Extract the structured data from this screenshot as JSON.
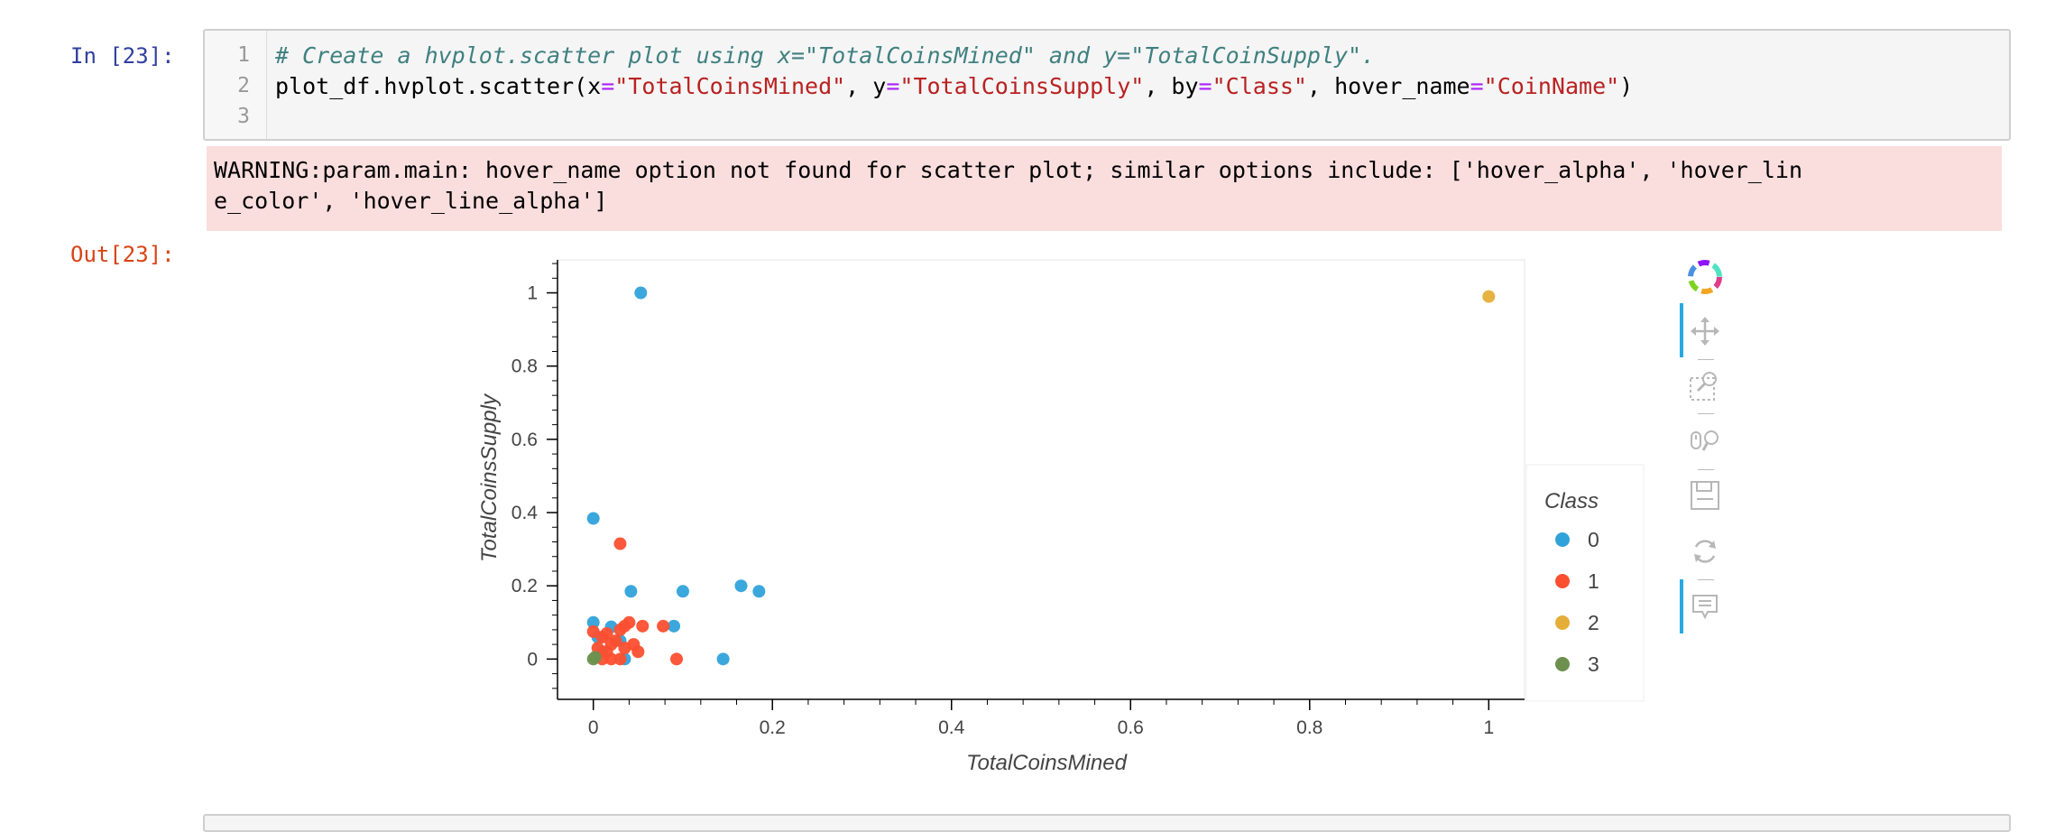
{
  "cell_in": {
    "prompt": "In [23]:",
    "line_numbers": [
      "1",
      "2",
      "3"
    ],
    "line1": "# Create a hvplot.scatter plot using x=\"TotalCoinsMined\" and y=\"TotalCoinSupply\".",
    "line2_parts": [
      "plot_df.hvplot.scatter(x",
      "=",
      "\"TotalCoinsMined\"",
      ", y",
      "=",
      "\"TotalCoinsSupply\"",
      ", by",
      "=",
      "\"Class\"",
      ", hover_name",
      "=",
      "\"CoinName\"",
      ")"
    ]
  },
  "stderr": {
    "line1": "WARNING:param.main: hover_name option not found for scatter plot; similar options include: ['hover_alpha', 'hover_lin",
    "line2": "e_color', 'hover_line_alpha']"
  },
  "cell_out": {
    "prompt": "Out[23]:"
  },
  "chart_data": {
    "type": "scatter",
    "xlabel": "TotalCoinsMined",
    "ylabel": "TotalCoinsSupply",
    "xlim": [
      -0.04,
      1.04
    ],
    "ylim": [
      -0.11,
      1.09
    ],
    "xticks": [
      0,
      0.2,
      0.4,
      0.6,
      0.8,
      1
    ],
    "xtick_labels": [
      "0",
      "0.2",
      "0.4",
      "0.6",
      "0.8",
      "1"
    ],
    "yticks": [
      0,
      0.2,
      0.4,
      0.6,
      0.8,
      1
    ],
    "ytick_labels": [
      "0",
      "0.2",
      "0.4",
      "0.6",
      "0.8",
      "1"
    ],
    "legend_title": "Class",
    "legend_position": "right",
    "series": [
      {
        "name": "0",
        "color": "#30a2da",
        "points": [
          [
            0.053,
            1.0
          ],
          [
            0.0,
            0.384
          ],
          [
            0.165,
            0.2
          ],
          [
            0.185,
            0.185
          ],
          [
            0.1,
            0.185
          ],
          [
            0.042,
            0.185
          ],
          [
            0.0,
            0.1
          ],
          [
            0.02,
            0.088
          ],
          [
            0.09,
            0.09
          ],
          [
            0.145,
            0.0
          ],
          [
            0.035,
            0.0
          ],
          [
            0.01,
            0.02
          ],
          [
            0.03,
            0.05
          ],
          [
            0.005,
            0.06
          ]
        ]
      },
      {
        "name": "1",
        "color": "#fc4f30",
        "points": [
          [
            0.03,
            0.315
          ],
          [
            0.0,
            0.075
          ],
          [
            0.01,
            0.06
          ],
          [
            0.02,
            0.04
          ],
          [
            0.015,
            0.02
          ],
          [
            0.025,
            0.05
          ],
          [
            0.03,
            0.08
          ],
          [
            0.035,
            0.09
          ],
          [
            0.04,
            0.1
          ],
          [
            0.045,
            0.04
          ],
          [
            0.05,
            0.02
          ],
          [
            0.055,
            0.09
          ],
          [
            0.078,
            0.09
          ],
          [
            0.093,
            0.0
          ],
          [
            0.01,
            0.0
          ],
          [
            0.02,
            0.0
          ],
          [
            0.03,
            0.0
          ],
          [
            0.005,
            0.03
          ],
          [
            0.015,
            0.07
          ],
          [
            0.035,
            0.03
          ]
        ]
      },
      {
        "name": "2",
        "color": "#e5ae38",
        "points": [
          [
            1.0,
            0.99
          ]
        ]
      },
      {
        "name": "3",
        "color": "#6d904f",
        "points": [
          [
            0.0,
            0.0
          ],
          [
            0.002,
            0.005
          ]
        ]
      }
    ]
  },
  "toolbar": {
    "tools": [
      "bokeh-logo-icon",
      "pan-icon",
      "box-zoom-icon",
      "wheel-zoom-icon",
      "save-icon",
      "reset-icon",
      "hover-icon"
    ]
  }
}
